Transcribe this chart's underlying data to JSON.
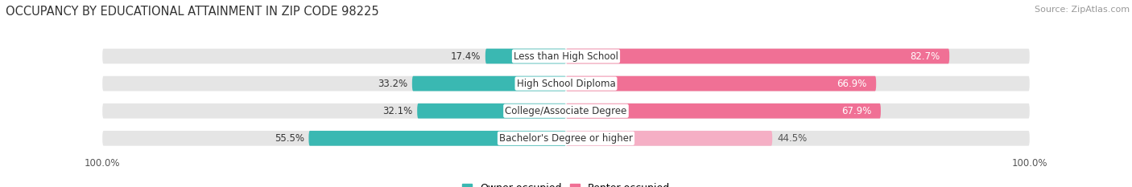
{
  "title": "OCCUPANCY BY EDUCATIONAL ATTAINMENT IN ZIP CODE 98225",
  "source": "Source: ZipAtlas.com",
  "categories": [
    "Less than High School",
    "High School Diploma",
    "College/Associate Degree",
    "Bachelor's Degree or higher"
  ],
  "owner_pct": [
    17.4,
    33.2,
    32.1,
    55.5
  ],
  "renter_pct": [
    82.7,
    66.9,
    67.9,
    44.5
  ],
  "owner_color": "#3ab8b2",
  "renter_colors": [
    "#f07095",
    "#f07095",
    "#f07095",
    "#f5afc5"
  ],
  "bar_bg_color": "#e5e5e5",
  "row_bg_color": "#f0f0f0",
  "background_color": "#ffffff",
  "title_fontsize": 10.5,
  "source_fontsize": 8,
  "label_fontsize": 8.5,
  "pct_label_fontsize": 8.5,
  "tick_fontsize": 8.5,
  "legend_fontsize": 9,
  "owner_pct_label_color": "#333333",
  "renter_pct_label_colors": [
    "#ffffff",
    "#ffffff",
    "#ffffff",
    "#555555"
  ],
  "cat_label_color": "#333333"
}
